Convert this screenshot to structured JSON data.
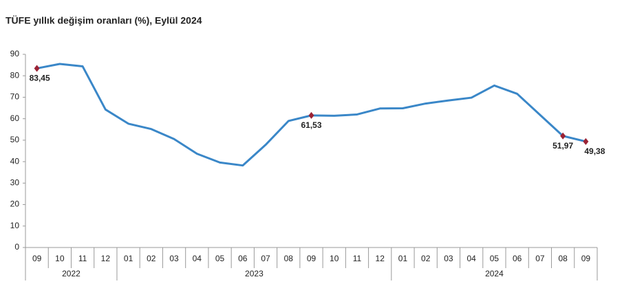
{
  "chart_data": {
    "type": "line",
    "title": "TÜFE yıllık değişim oranları (%), Eylül 2024",
    "categories": [
      "09",
      "10",
      "11",
      "12",
      "01",
      "02",
      "03",
      "04",
      "05",
      "06",
      "07",
      "08",
      "09",
      "10",
      "11",
      "12",
      "01",
      "02",
      "03",
      "04",
      "05",
      "06",
      "07",
      "08",
      "09"
    ],
    "year_groups": [
      {
        "name": "2022",
        "span": 4
      },
      {
        "name": "2023",
        "span": 12
      },
      {
        "name": "2024",
        "span": 9
      }
    ],
    "series": [
      {
        "name": "TÜFE",
        "color": "#3a87c8",
        "marker_color": "#9b2335",
        "values": [
          83.45,
          85.51,
          84.39,
          64.27,
          57.68,
          55.18,
          50.51,
          43.68,
          39.59,
          38.21,
          47.83,
          58.94,
          61.53,
          61.36,
          61.98,
          64.77,
          64.86,
          67.07,
          68.5,
          69.8,
          75.45,
          71.6,
          61.78,
          51.97,
          49.38
        ],
        "value_labels": [
          "83,45",
          null,
          null,
          null,
          null,
          null,
          null,
          null,
          null,
          null,
          null,
          null,
          "61,53",
          null,
          null,
          null,
          null,
          null,
          null,
          null,
          null,
          null,
          null,
          "51,97",
          "49,38"
        ]
      }
    ],
    "ylim": [
      0,
      90
    ],
    "yticks": [
      0,
      10,
      20,
      30,
      40,
      50,
      60,
      70,
      80,
      90
    ],
    "grid": false
  }
}
